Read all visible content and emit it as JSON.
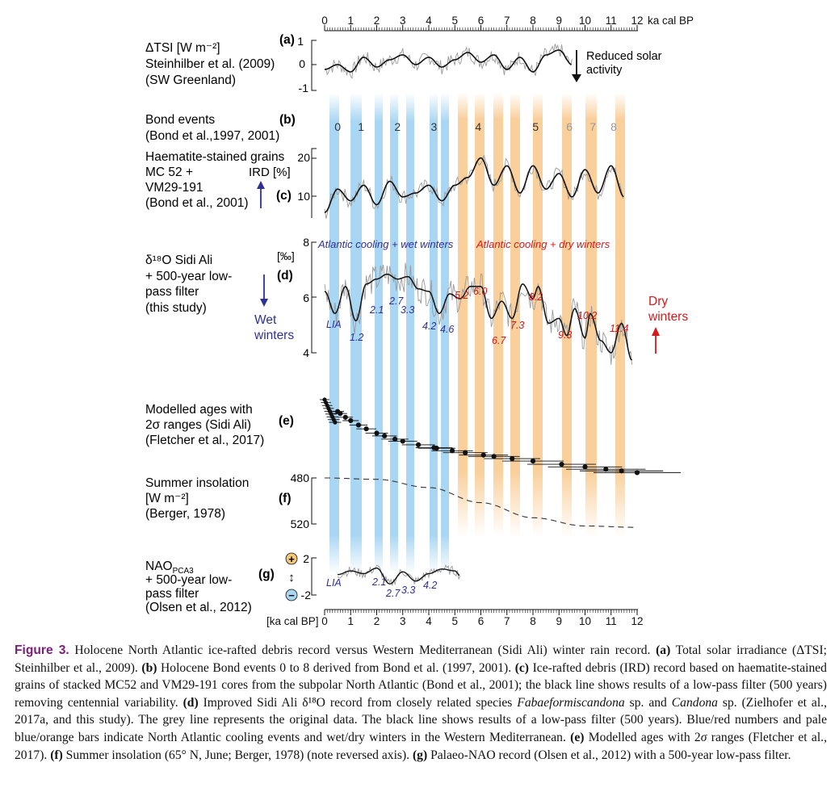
{
  "figure": {
    "top_axis": {
      "ticks": [
        "0",
        "1",
        "2",
        "3",
        "4",
        "5",
        "6",
        "7",
        "8",
        "9",
        "10",
        "11",
        "12"
      ],
      "unit": "ka cal BP"
    },
    "bottom_axis": {
      "unit": "[ka cal BP]",
      "ticks": [
        "0",
        "1",
        "2",
        "3",
        "4",
        "5",
        "6",
        "7",
        "8",
        "9",
        "10",
        "11",
        "12"
      ]
    },
    "panels": {
      "a": {
        "letter": "(a)",
        "label_lines": [
          "ΔTSI  [W m⁻²]",
          "Steinhilber et al. (2009)",
          "(SW Greenland)"
        ],
        "ticks": [
          "1",
          "0",
          "-1"
        ],
        "annotation_lines": [
          "Reduced solar",
          "activity"
        ]
      },
      "b": {
        "letter": "(b)",
        "label_lines": [
          "Bond events",
          "(Bond et al.,1997, 2001)"
        ],
        "events": [
          "0",
          "1",
          "2",
          "3",
          "4",
          "5",
          "6",
          "7",
          "8"
        ]
      },
      "c": {
        "letter": "(c)",
        "label_lines": [
          "Haematite-stained grains",
          "MC 52 +",
          "VM29-191",
          "(Bond et al., 2001)"
        ],
        "ird_label": "IRD [%]",
        "ticks": [
          "20",
          "10"
        ]
      },
      "d": {
        "letter": "(d)",
        "label_lines": [
          "δ¹⁸O Sidi Ali",
          "+ 500-year low-",
          "pass filter",
          "(this study)"
        ],
        "unit": "[‰]",
        "ticks": [
          "8",
          "6",
          "4"
        ],
        "wet_label_lines": [
          "Wet",
          "winters"
        ],
        "dry_label_lines": [
          "Dry",
          "winters"
        ],
        "wet_phase": "Atlantic cooling + wet winters",
        "dry_phase": "Atlantic cooling + dry winters",
        "wet_events": [
          "LIA",
          "1.2",
          "2.1",
          "2.7",
          "3.3",
          "4.2",
          "4.6"
        ],
        "dry_events": [
          "5.2",
          "6.0",
          "6.7",
          "7.3",
          "8.2",
          "9.3",
          "10.2",
          "11.4"
        ]
      },
      "e": {
        "letter": "(e)",
        "label_lines": [
          "Modelled ages with",
          "2σ ranges (Sidi Ali)",
          "(Fletcher et al., 2017)"
        ]
      },
      "f": {
        "letter": "(f)",
        "label_lines": [
          "Summer insolation",
          "[W m⁻²]",
          "(Berger, 1978)"
        ],
        "ticks": [
          "480",
          "520"
        ]
      },
      "g": {
        "letter": "(g)",
        "label_lines": [
          "NAO",
          "+ 500-year low-",
          "pass filter",
          "(Olsen et al., 2012)"
        ],
        "nao_subscript": "PCA3",
        "ticks": [
          "2",
          "-2"
        ],
        "plus_symbol": "+",
        "minus_symbol": "−",
        "arrow_symbol": "↕",
        "events": [
          "LIA",
          "2.1",
          "2.7",
          "3.3",
          "4.2"
        ]
      }
    },
    "colors": {
      "wet_bar": "#a9d6f3",
      "dry_bar": "#f9cf9b",
      "wet_text": "#2e3192",
      "dry_text": "#d7191c",
      "caption_lead": "#7a1f7a"
    }
  },
  "chart_data": {
    "type": "line",
    "x_axis": {
      "label": "ka cal BP",
      "range": [
        0,
        12
      ]
    },
    "north_atlantic_cooling_events_wet": [
      0.4,
      1.2,
      2.1,
      2.7,
      3.3,
      4.2,
      4.6
    ],
    "north_atlantic_cooling_events_dry": [
      5.2,
      6.0,
      6.7,
      7.3,
      8.2,
      9.3,
      10.2,
      11.4
    ],
    "bond_events": [
      {
        "name": "0",
        "age": 0.5
      },
      {
        "name": "1",
        "age": 1.4
      },
      {
        "name": "2",
        "age": 2.8
      },
      {
        "name": "3",
        "age": 4.2
      },
      {
        "name": "4",
        "age": 5.9
      },
      {
        "name": "5",
        "age": 8.1
      },
      {
        "name": "6",
        "age": 9.4
      },
      {
        "name": "7",
        "age": 10.3
      },
      {
        "name": "8",
        "age": 11.1
      }
    ],
    "series": [
      {
        "name": "ΔTSI",
        "ylim": [
          -1,
          1
        ],
        "x": [
          0,
          0.5,
          1,
          1.5,
          2,
          2.5,
          3,
          3.5,
          4,
          4.5,
          5,
          5.5,
          6,
          6.5,
          7,
          7.5,
          8,
          8.5,
          9,
          9.5
        ],
        "values": [
          -0.2,
          0.0,
          -0.3,
          0.3,
          -0.1,
          0.2,
          0.4,
          0.0,
          0.3,
          -0.1,
          0.2,
          0.5,
          0.1,
          0.4,
          -0.2,
          0.3,
          -0.3,
          0.4,
          0.6,
          0.0
        ]
      },
      {
        "name": "Haematite-stained grains (IRD %)",
        "ylim": [
          5,
          22
        ],
        "x": [
          0,
          0.5,
          1,
          1.5,
          2,
          2.5,
          3,
          3.5,
          4,
          4.5,
          5,
          5.5,
          6,
          6.5,
          7,
          7.5,
          8,
          8.5,
          9,
          9.5,
          10,
          10.5,
          11,
          11.5
        ],
        "values": [
          6,
          12,
          9,
          13,
          8,
          14,
          10,
          11,
          13,
          9,
          13,
          15,
          20,
          13,
          18,
          11,
          18,
          12,
          16,
          10,
          17,
          11,
          18,
          10
        ]
      },
      {
        "name": "δ18O Sidi Ali (low-pass)",
        "ylim": [
          3.5,
          8
        ],
        "x": [
          0,
          0.4,
          0.8,
          1.2,
          1.6,
          2.0,
          2.4,
          2.8,
          3.2,
          3.6,
          4.0,
          4.4,
          4.8,
          5.2,
          5.6,
          6.0,
          6.4,
          6.8,
          7.2,
          7.6,
          8.0,
          8.2,
          8.6,
          9.0,
          9.3,
          9.6,
          10.0,
          10.2,
          10.6,
          11.0,
          11.4,
          11.8
        ],
        "values": [
          6.0,
          5.1,
          6.2,
          4.8,
          6.3,
          6.5,
          6.7,
          6.5,
          6.6,
          6.1,
          6.0,
          5.1,
          5.9,
          5.7,
          6.2,
          6.2,
          4.9,
          5.6,
          4.9,
          6.3,
          5.7,
          6.2,
          4.7,
          4.9,
          4.2,
          5.3,
          4.1,
          5.1,
          4.0,
          3.5,
          4.7,
          3.2
        ]
      },
      {
        "name": "Summer insolation (65°N, June)",
        "ylim": [
          480,
          520
        ],
        "reversed": true,
        "x": [
          0,
          2,
          4,
          6,
          8,
          10,
          12
        ],
        "values": [
          480,
          481,
          487,
          498,
          509,
          515,
          516
        ]
      },
      {
        "name": "NAO PCA3 (low-pass)",
        "ylim": [
          -2,
          2
        ],
        "x": [
          0.5,
          1,
          1.5,
          2,
          2.5,
          3,
          3.5,
          4,
          4.5,
          5,
          5.2
        ],
        "values": [
          0.2,
          0.6,
          0.3,
          0.9,
          -0.8,
          0.5,
          -0.5,
          0.3,
          0.8,
          0.6,
          0.1
        ]
      }
    ]
  },
  "caption": {
    "lead": "Figure 3.",
    "p1": " Holocene North Atlantic ice-rafted debris record versus Western Mediterranean (Sidi Ali) winter rain record. ",
    "a_label": "(a)",
    "p2": " Total solar irradiance (ΔTSI; Steinhilber et al., 2009). ",
    "b_label": "(b)",
    "p3": " Holocene Bond events 0 to 8 derived from Bond et al. (1997, 2001). ",
    "c_label": "(c)",
    "p4": " Ice-rafted debris (IRD) record based on haematite-stained grains of stacked MC52 and VM29-191 cores from the subpolar North Atlantic (Bond et al., 2001); the black line shows results of a low-pass filter (500 years) removing centennial variability. ",
    "d_label": "(d)",
    "p5": " Improved Sidi Ali δ¹⁸O record from closely related species ",
    "species1": "Fabaeformiscandona",
    "p6": " sp. and ",
    "species2": "Candona",
    "p7": " sp. (Zielhofer et al., 2017a, and this study). The grey line represents the original data. The black line shows results of a low-pass filter (500 years). Blue/red numbers and pale blue/orange bars indicate North Atlantic cooling events and wet/dry winters in the Western Mediterranean. ",
    "e_label": "(e)",
    "p8": " Modelled ages with 2",
    "sigma": "σ",
    "p9": " ranges (Fletcher et al., 2017). ",
    "f_label": "(f)",
    "p10": " Summer insolation (65° N, June; Berger, 1978) (note reversed axis). ",
    "g_label": "(g)",
    "p11": " Palaeo-NAO record (Olsen et al., 2012) with a 500-year low-pass filter."
  }
}
